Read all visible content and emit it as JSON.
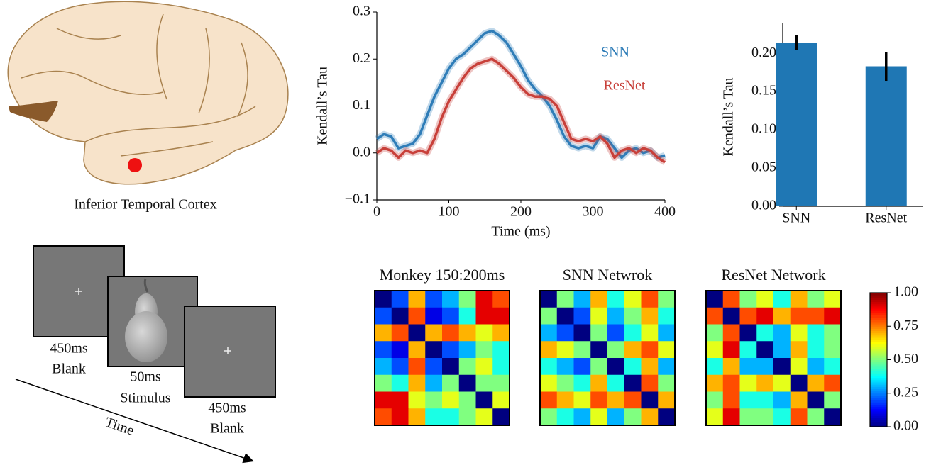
{
  "illustration": {
    "label": "Inferior Temporal Cortex"
  },
  "paradigm": {
    "frames": [
      {
        "duration": "450ms",
        "label": "Blank"
      },
      {
        "duration": "50ms",
        "label": "Stimulus"
      },
      {
        "duration": "450ms",
        "label": "Blank"
      }
    ],
    "axis_label": "Time"
  },
  "chart_data": [
    {
      "type": "line",
      "xlabel": "Time (ms)",
      "ylabel": "Kendall’s Tau",
      "x": [
        0,
        10,
        20,
        30,
        40,
        50,
        60,
        70,
        80,
        90,
        100,
        110,
        120,
        130,
        140,
        150,
        160,
        170,
        180,
        190,
        200,
        210,
        220,
        230,
        240,
        250,
        260,
        270,
        280,
        290,
        300,
        310,
        320,
        330,
        340,
        350,
        360,
        370,
        380,
        390,
        400
      ],
      "series": [
        {
          "name": "SNN",
          "color": "#2f7db8",
          "values": [
            0.03,
            0.04,
            0.035,
            0.01,
            0.015,
            0.02,
            0.04,
            0.08,
            0.12,
            0.15,
            0.18,
            0.2,
            0.21,
            0.225,
            0.24,
            0.255,
            0.26,
            0.25,
            0.235,
            0.21,
            0.185,
            0.155,
            0.135,
            0.12,
            0.1,
            0.07,
            0.035,
            0.015,
            0.01,
            0.015,
            0.01,
            0.035,
            0.03,
            0.01,
            -0.01,
            0.005,
            0.01,
            0.0,
            0.005,
            -0.01,
            -0.005
          ]
        },
        {
          "name": "ResNet",
          "color": "#c8403a",
          "values": [
            0.0,
            0.01,
            0.005,
            -0.01,
            0.005,
            0.0,
            0.005,
            0.0,
            0.03,
            0.075,
            0.11,
            0.135,
            0.16,
            0.18,
            0.19,
            0.195,
            0.2,
            0.19,
            0.175,
            0.16,
            0.14,
            0.125,
            0.12,
            0.12,
            0.115,
            0.1,
            0.065,
            0.03,
            0.025,
            0.03,
            0.025,
            0.035,
            0.02,
            -0.01,
            0.005,
            0.01,
            0.0,
            0.01,
            0.005,
            -0.01,
            -0.02
          ]
        }
      ],
      "xlim": [
        0,
        400
      ],
      "xticks": [
        0,
        100,
        200,
        300,
        400
      ],
      "ylim": [
        -0.1,
        0.3
      ],
      "yticks": [
        0.3,
        0.2,
        0.1,
        {
          "value": 0,
          "label": "0.0"
        },
        {
          "value": -0.1,
          "label": "−0.1"
        }
      ]
    },
    {
      "type": "bar",
      "ylabel": "Kendall’s Tau",
      "categories": [
        "SNN",
        "ResNet"
      ],
      "values": [
        0.214,
        0.183
      ],
      "errors": [
        0.01,
        0.019
      ],
      "color": "#1f77b4",
      "ylim": [
        0,
        0.24
      ],
      "yticks": [
        {
          "value": 0,
          "label": "0.00"
        },
        {
          "value": 0.05,
          "label": "0.05"
        },
        {
          "value": 0.1,
          "label": "0.10"
        },
        {
          "value": 0.15,
          "label": "0.15"
        },
        {
          "value": 0.2,
          "label": "0.20"
        }
      ]
    },
    {
      "type": "heatmap",
      "colormap": "jet",
      "zlim": [
        0,
        1
      ],
      "zticks": [
        {
          "value": 0,
          "label": "0.00"
        },
        {
          "value": 0.25,
          "label": "0.25"
        },
        {
          "value": 0.5,
          "label": "0.50"
        },
        {
          "value": 0.75,
          "label": "0.75"
        },
        {
          "value": 1,
          "label": "1.00"
        }
      ],
      "panels": [
        {
          "title": "Monkey 150:200ms",
          "values": [
            [
              0,
              0.2,
              0.7,
              0.2,
              0.3,
              0.5,
              0.9,
              0.8
            ],
            [
              0.2,
              0,
              0.8,
              0.1,
              0.2,
              0.4,
              0.9,
              0.9
            ],
            [
              0.7,
              0.8,
              0,
              0.7,
              0.8,
              0.7,
              0.6,
              0.7
            ],
            [
              0.2,
              0.1,
              0.7,
              0,
              0.2,
              0.3,
              0.5,
              0.4
            ],
            [
              0.3,
              0.2,
              0.8,
              0.2,
              0,
              0.5,
              0.6,
              0.4
            ],
            [
              0.5,
              0.4,
              0.7,
              0.3,
              0.5,
              0,
              0.5,
              0.5
            ],
            [
              0.9,
              0.9,
              0.6,
              0.5,
              0.6,
              0.5,
              0,
              0.6
            ],
            [
              0.8,
              0.9,
              0.7,
              0.4,
              0.4,
              0.5,
              0.6,
              0
            ]
          ]
        },
        {
          "title": "SNN Netwrok",
          "values": [
            [
              0,
              0.5,
              0.3,
              0.7,
              0.4,
              0.6,
              0.8,
              0.5
            ],
            [
              0.5,
              0,
              0.2,
              0.6,
              0.3,
              0.5,
              0.7,
              0.4
            ],
            [
              0.3,
              0.2,
              0,
              0.5,
              0.2,
              0.4,
              0.6,
              0.3
            ],
            [
              0.7,
              0.6,
              0.5,
              0,
              0.5,
              0.7,
              0.8,
              0.6
            ],
            [
              0.4,
              0.3,
              0.2,
              0.5,
              0,
              0.4,
              0.7,
              0.3
            ],
            [
              0.6,
              0.5,
              0.4,
              0.7,
              0.4,
              0,
              0.8,
              0.5
            ],
            [
              0.8,
              0.7,
              0.6,
              0.8,
              0.7,
              0.8,
              0,
              0.7
            ],
            [
              0.5,
              0.4,
              0.3,
              0.6,
              0.3,
              0.5,
              0.7,
              0
            ]
          ]
        },
        {
          "title": "ResNet Network",
          "values": [
            [
              0,
              0.8,
              0.5,
              0.6,
              0.4,
              0.7,
              0.5,
              0.6
            ],
            [
              0.8,
              0,
              0.8,
              0.9,
              0.7,
              0.8,
              0.8,
              0.9
            ],
            [
              0.5,
              0.8,
              0,
              0.4,
              0.3,
              0.6,
              0.4,
              0.5
            ],
            [
              0.6,
              0.9,
              0.4,
              0,
              0.3,
              0.7,
              0.4,
              0.5
            ],
            [
              0.4,
              0.7,
              0.3,
              0.3,
              0,
              0.6,
              0.3,
              0.4
            ],
            [
              0.7,
              0.8,
              0.6,
              0.7,
              0.6,
              0,
              0.7,
              0.8
            ],
            [
              0.5,
              0.8,
              0.4,
              0.4,
              0.3,
              0.7,
              0,
              0.5
            ],
            [
              0.6,
              0.9,
              0.5,
              0.5,
              0.4,
              0.8,
              0.5,
              0
            ]
          ]
        }
      ]
    }
  ]
}
